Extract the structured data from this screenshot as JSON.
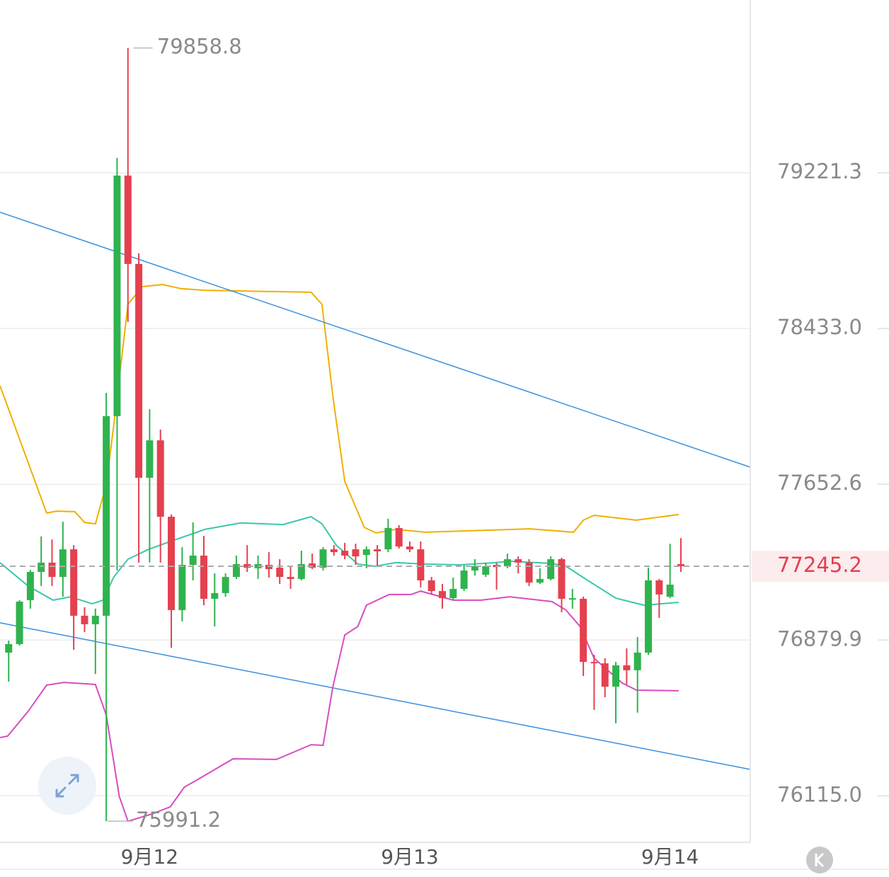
{
  "chart_data": {
    "type": "candlestick",
    "log_scale": true,
    "up_color": "#2fb34e",
    "down_color": "#e5404f",
    "x": [
      0,
      1,
      2,
      3,
      4,
      5,
      6,
      7,
      8,
      9,
      10,
      11,
      12,
      13,
      14,
      15,
      16,
      17,
      18,
      19,
      20,
      21,
      22,
      23,
      24,
      25,
      26,
      27,
      28,
      29,
      30,
      31,
      32,
      33,
      34,
      35,
      36,
      37,
      38,
      39,
      40,
      41,
      42,
      43,
      44,
      45,
      46,
      47,
      48,
      49,
      50,
      51,
      52,
      53,
      54,
      55,
      56,
      57,
      58,
      59,
      60,
      61,
      62
    ],
    "open": [
      76818,
      76860,
      77077,
      77217,
      77263,
      77192,
      77329,
      77000,
      76958,
      77000,
      77993,
      79207,
      78759,
      77685,
      77872,
      77491,
      77028,
      77252,
      77298,
      77084,
      77112,
      77192,
      77256,
      77235,
      77252,
      77238,
      77192,
      77182,
      77259,
      77238,
      77329,
      77322,
      77329,
      77301,
      77329,
      77329,
      77435,
      77343,
      77329,
      77175,
      77122,
      77087,
      77133,
      77224,
      77203,
      77252,
      77245,
      77280,
      77263,
      77164,
      77182,
      77280,
      77080,
      77084,
      76772,
      76765,
      76650,
      76755,
      76731,
      76818,
      77175,
      77094,
      77256
    ],
    "high": [
      76877,
      77077,
      77227,
      77393,
      77378,
      77466,
      77350,
      77042,
      77035,
      78110,
      79297,
      79858.8,
      78813,
      78028,
      77926,
      77502,
      77340,
      77463,
      77396,
      77210,
      77210,
      77298,
      77350,
      77298,
      77315,
      77280,
      77245,
      77322,
      77308,
      77340,
      77350,
      77361,
      77357,
      77343,
      77350,
      77481,
      77449,
      77368,
      77368,
      77192,
      77157,
      77189,
      77252,
      77280,
      77263,
      77263,
      77308,
      77294,
      77280,
      77235,
      77294,
      77287,
      77133,
      77094,
      76807,
      76790,
      76772,
      76839,
      76895,
      77238,
      77182,
      77357,
      77385
    ],
    "low": [
      76675,
      76853,
      77035,
      77147,
      77147,
      77094,
      76832,
      76919,
      76713,
      75991.2,
      77224,
      78466,
      77263,
      77263,
      77263,
      76842,
      76972,
      77175,
      77052,
      76947,
      77094,
      77182,
      77217,
      77182,
      77189,
      77157,
      77133,
      77175,
      77231,
      77224,
      77298,
      77280,
      77252,
      77235,
      77245,
      77315,
      77333,
      77315,
      77140,
      77105,
      77035,
      77077,
      77122,
      77199,
      77192,
      77129,
      77235,
      77210,
      77147,
      77157,
      77175,
      77017,
      77035,
      76703,
      76536,
      76598,
      76470,
      76661,
      76522,
      76807,
      76989,
      77087,
      77217
    ],
    "close": [
      76860,
      77070,
      77217,
      77263,
      77192,
      77329,
      77000,
      76958,
      77000,
      77993,
      79207,
      78759,
      77685,
      77872,
      77491,
      77028,
      77252,
      77298,
      77084,
      77112,
      77192,
      77256,
      77238,
      77256,
      77231,
      77192,
      77182,
      77256,
      77238,
      77329,
      77315,
      77298,
      77294,
      77329,
      77319,
      77435,
      77343,
      77329,
      77175,
      77122,
      77087,
      77133,
      77224,
      77245,
      77245,
      77241,
      77280,
      77263,
      77164,
      77182,
      77280,
      77084,
      77087,
      76772,
      76765,
      76650,
      76755,
      76731,
      76818,
      77175,
      77105,
      77154,
      77245.2
    ],
    "overlays": [
      {
        "color": "#f0b000",
        "x": [
          -0.8,
          3.5,
          4.4,
          6.1,
          7.0,
          8.0,
          9.0,
          9.7,
          11.0,
          12.3,
          14.2,
          15.9,
          18.1,
          27.9,
          28.9,
          29.9,
          31.0,
          32.8,
          33.9,
          35.7,
          38.4,
          48.1,
          52.1,
          53.0,
          54.0,
          57.9,
          61.8
        ],
        "values": [
          78146,
          77509,
          77519,
          77516,
          77463,
          77456,
          77650,
          77950,
          78555,
          78644,
          78655,
          78634,
          78626,
          78616,
          78555,
          78092,
          77667,
          77438,
          77410,
          77428,
          77414,
          77431,
          77414,
          77474,
          77498,
          77474,
          77502
        ]
      },
      {
        "color": "#3cc7ad",
        "x": [
          -0.8,
          1.8,
          4.1,
          5.7,
          7.7,
          8.7,
          9.7,
          11.0,
          12.9,
          14.9,
          18.1,
          21.4,
          25.3,
          27.9,
          28.9,
          30.2,
          32.2,
          33.8,
          35.7,
          38.4,
          41.6,
          44.9,
          46.2,
          50.1,
          51.4,
          53.4,
          56.0,
          58.6,
          61.8
        ],
        "values": [
          77263,
          77147,
          77077,
          77094,
          77059,
          77077,
          77192,
          77280,
          77329,
          77368,
          77428,
          77460,
          77452,
          77491,
          77456,
          77350,
          77256,
          77245,
          77263,
          77256,
          77252,
          77263,
          77270,
          77259,
          77245,
          77175,
          77087,
          77052,
          77066
        ]
      },
      {
        "color": "#d94cc0",
        "x": [
          -0.8,
          -0.1,
          1.8,
          3.5,
          5.1,
          8.0,
          9.0,
          10.2,
          11.0,
          13.2,
          14.9,
          16.2,
          17.8,
          20.7,
          24.7,
          27.9,
          29.0,
          29.9,
          31.0,
          32.2,
          33.0,
          35.1,
          37.1,
          38.0,
          41.0,
          43.6,
          46.2,
          50.1,
          51.4,
          52.7,
          54.0,
          56.6,
          57.9,
          61.8
        ],
        "values": [
          76400,
          76407,
          76529,
          76658,
          76671,
          76661,
          76511,
          76112,
          75991,
          76026,
          76061,
          76157,
          76206,
          76296,
          76293,
          76365,
          76362,
          76650,
          76905,
          76947,
          77052,
          77105,
          77105,
          77122,
          77077,
          77077,
          77094,
          77070,
          77028,
          76947,
          76790,
          76668,
          76633,
          76630
        ]
      },
      {
        "color": "#3a8fdc",
        "x": [
          -0.8,
          68.4
        ],
        "values": [
          79021,
          77738
        ]
      },
      {
        "color": "#3a8fdc",
        "x": [
          -0.8,
          68.4
        ],
        "values": [
          76965,
          76244
        ]
      }
    ],
    "xlim": [
      -0.8,
      68.4
    ],
    "xticks": [
      {
        "value": 13,
        "label": "9月12"
      },
      {
        "value": 37,
        "label": "9月13"
      },
      {
        "value": 61,
        "label": "9月14"
      }
    ],
    "ylim": [
      75888,
      80105
    ],
    "yticks": [
      {
        "value": 76115,
        "label": "76115.0"
      },
      76879.9,
      77652.6,
      {
        "value": 78433,
        "label": "78433.0"
      },
      79221.3
    ],
    "grid": true
  }
}
